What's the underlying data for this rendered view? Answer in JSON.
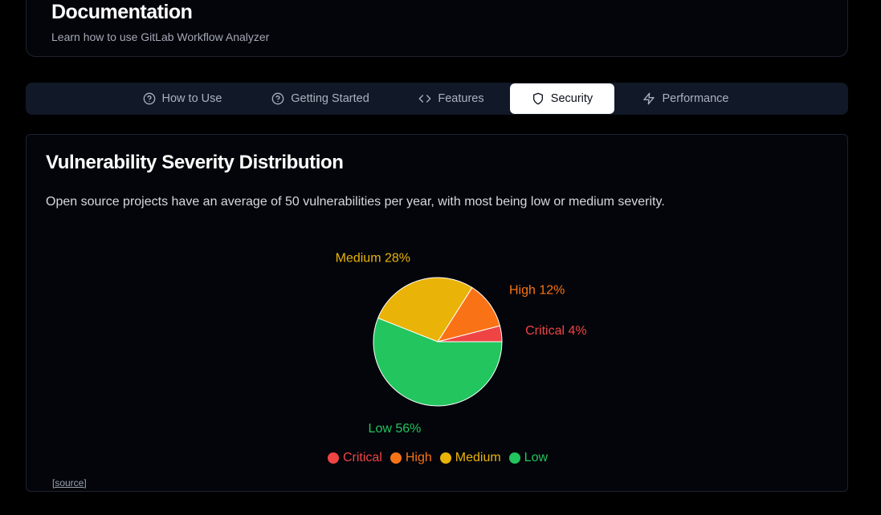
{
  "header": {
    "title": "Documentation",
    "subtitle": "Learn how to use GitLab Workflow Analyzer"
  },
  "tabs": [
    {
      "label": "How to Use",
      "icon": "help-circle-icon",
      "active": false
    },
    {
      "label": "Getting Started",
      "icon": "help-circle-icon",
      "active": false
    },
    {
      "label": "Features",
      "icon": "code-icon",
      "active": false
    },
    {
      "label": "Security",
      "icon": "shield-icon",
      "active": true
    },
    {
      "label": "Performance",
      "icon": "zap-icon",
      "active": false
    }
  ],
  "section": {
    "title": "Vulnerability Severity Distribution",
    "description": "Open source projects have an average of 50 vulnerabilities per year, with most being low or medium severity.",
    "source_label": "[source]"
  },
  "chart_data": {
    "type": "pie",
    "title": "",
    "slices": [
      {
        "name": "Critical",
        "value": 4,
        "label": "Critical 4%",
        "color": "#ef4444"
      },
      {
        "name": "High",
        "value": 12,
        "label": "High 12%",
        "color": "#f97316"
      },
      {
        "name": "Medium",
        "value": 28,
        "label": "Medium 28%",
        "color": "#eab308"
      },
      {
        "name": "Low",
        "value": 56,
        "label": "Low 56%",
        "color": "#22c55e"
      }
    ],
    "legend": [
      "Critical",
      "High",
      "Medium",
      "Low"
    ],
    "legend_position": "bottom"
  }
}
